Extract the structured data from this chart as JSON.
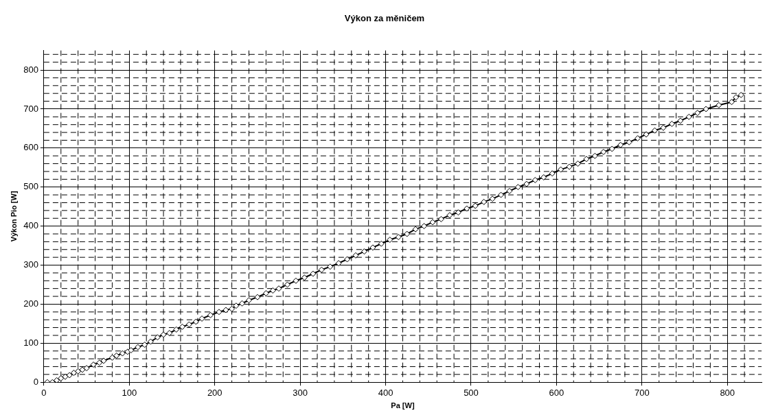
{
  "chart_data": {
    "type": "line",
    "title": "Výkon za měničem",
    "xlabel": "Pa [W]",
    "ylabel": "Výkon Pio [W]",
    "x": [
      4,
      10,
      15,
      20,
      25,
      30,
      35,
      40,
      45,
      50,
      58,
      65,
      70,
      80,
      85,
      92,
      98,
      102,
      110,
      118,
      125,
      133,
      140,
      147,
      155,
      162,
      170,
      178,
      185,
      195,
      205,
      213,
      220,
      225,
      232,
      240,
      250,
      260,
      268,
      275,
      285,
      295,
      305,
      315,
      325,
      335,
      345,
      355,
      365,
      375,
      385,
      395,
      405,
      415,
      425,
      435,
      445,
      455,
      465,
      475,
      485,
      495,
      505,
      515,
      525,
      535,
      545,
      555,
      565,
      575,
      585,
      595,
      605,
      615,
      625,
      635,
      645,
      655,
      665,
      675,
      685,
      695,
      705,
      715,
      725,
      735,
      745,
      755,
      765,
      775,
      790,
      805,
      810,
      816
    ],
    "series": [
      {
        "color": "#000000",
        "values": [
          0,
          0,
          5,
          10,
          14,
          18,
          24,
          28,
          32,
          36,
          45,
          50,
          55,
          63,
          68,
          74,
          78,
          82,
          90,
          96,
          104,
          115,
          122,
          126,
          135,
          142,
          148,
          155,
          163,
          172,
          180,
          185,
          188,
          196,
          202,
          210,
          218,
          228,
          235,
          240,
          250,
          260,
          268,
          278,
          288,
          296,
          305,
          315,
          325,
          335,
          345,
          355,
          365,
          372,
          380,
          392,
          400,
          410,
          418,
          428,
          435,
          445,
          452,
          462,
          470,
          480,
          490,
          500,
          508,
          518,
          525,
          535,
          545,
          552,
          560,
          572,
          580,
          590,
          598,
          608,
          615,
          625,
          635,
          645,
          652,
          662,
          670,
          680,
          690,
          700,
          710,
          718,
          730,
          736
        ]
      }
    ],
    "xlim": [
      0,
      840
    ],
    "ylim": [
      0,
      850
    ],
    "xticks": [
      0,
      100,
      200,
      300,
      400,
      500,
      600,
      700,
      800
    ],
    "yticks": [
      0,
      100,
      200,
      300,
      400,
      500,
      600,
      700,
      800
    ],
    "grid": true,
    "legend": false,
    "marker": "diamond",
    "line_style": "solid"
  }
}
